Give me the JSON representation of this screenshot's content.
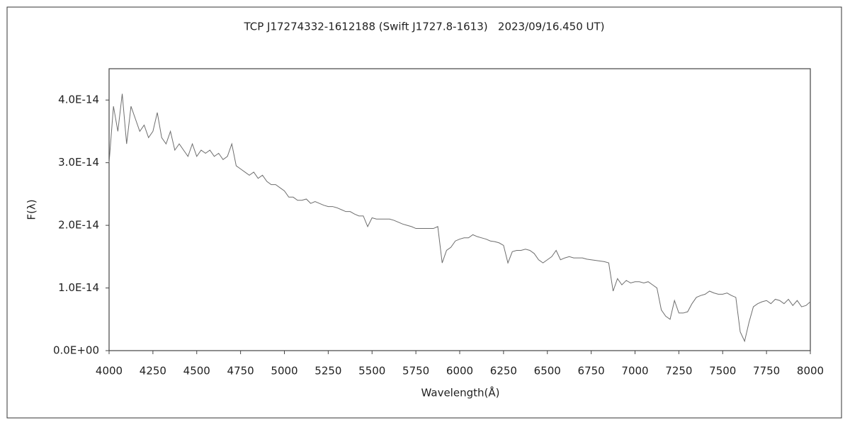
{
  "chart_data": {
    "type": "line",
    "title": "TCP J17274332-1612188 (Swift J1727.8-1613)   2023/09/16.450 UT)",
    "x_label": "Wavelength(Å)",
    "y_label": "F(λ)",
    "xlim": [
      4000,
      8000
    ],
    "xticks": [
      4000,
      4250,
      4500,
      4750,
      5000,
      5250,
      5500,
      5750,
      6000,
      6250,
      6500,
      6750,
      7000,
      7250,
      7500,
      7750,
      8000
    ],
    "ylim": [
      0,
      4.5e-14
    ],
    "yticks": [
      {
        "value": 0,
        "label": "0.0E+00"
      },
      {
        "value": 1e-14,
        "label": "1.0E-14"
      },
      {
        "value": 2e-14,
        "label": "2.0E-14"
      },
      {
        "value": 3e-14,
        "label": "3.0E-14"
      },
      {
        "value": 4e-14,
        "label": "4.0E-14"
      }
    ],
    "grid": false,
    "x": [
      4000,
      4025,
      4050,
      4075,
      4100,
      4125,
      4150,
      4175,
      4200,
      4225,
      4250,
      4275,
      4300,
      4325,
      4350,
      4375,
      4400,
      4425,
      4450,
      4475,
      4500,
      4525,
      4550,
      4575,
      4600,
      4625,
      4650,
      4675,
      4700,
      4725,
      4750,
      4775,
      4800,
      4825,
      4850,
      4875,
      4900,
      4925,
      4950,
      4975,
      5000,
      5025,
      5050,
      5075,
      5100,
      5125,
      5150,
      5175,
      5200,
      5225,
      5250,
      5275,
      5300,
      5325,
      5350,
      5375,
      5400,
      5425,
      5450,
      5475,
      5500,
      5525,
      5550,
      5575,
      5600,
      5625,
      5650,
      5675,
      5700,
      5725,
      5750,
      5775,
      5800,
      5825,
      5850,
      5875,
      5900,
      5925,
      5950,
      5975,
      6000,
      6025,
      6050,
      6075,
      6100,
      6125,
      6150,
      6175,
      6200,
      6225,
      6250,
      6275,
      6300,
      6325,
      6350,
      6375,
      6400,
      6425,
      6450,
      6475,
      6500,
      6525,
      6550,
      6575,
      6600,
      6625,
      6650,
      6675,
      6700,
      6725,
      6750,
      6775,
      6800,
      6825,
      6850,
      6875,
      6900,
      6925,
      6950,
      6975,
      7000,
      7025,
      7050,
      7075,
      7100,
      7125,
      7150,
      7175,
      7200,
      7225,
      7250,
      7275,
      7300,
      7325,
      7350,
      7375,
      7400,
      7425,
      7450,
      7475,
      7500,
      7525,
      7550,
      7575,
      7600,
      7625,
      7650,
      7675,
      7700,
      7725,
      7750,
      7775,
      7800,
      7825,
      7850,
      7875,
      7900,
      7925,
      7950,
      7975,
      8000
    ],
    "series": [
      {
        "color": "#6e6e6e",
        "values": [
          3e-14,
          3.9e-14,
          3.5e-14,
          4.1e-14,
          3.3e-14,
          3.9e-14,
          3.7e-14,
          3.5e-14,
          3.6e-14,
          3.4e-14,
          3.5e-14,
          3.8e-14,
          3.4e-14,
          3.3e-14,
          3.5e-14,
          3.2e-14,
          3.3e-14,
          3.2e-14,
          3.1e-14,
          3.3e-14,
          3.1e-14,
          3.2e-14,
          3.15e-14,
          3.2e-14,
          3.1e-14,
          3.15e-14,
          3.05e-14,
          3.1e-14,
          3.3e-14,
          2.95e-14,
          2.9e-14,
          2.85e-14,
          2.8e-14,
          2.85e-14,
          2.75e-14,
          2.8e-14,
          2.7e-14,
          2.65e-14,
          2.65e-14,
          2.6e-14,
          2.55e-14,
          2.45e-14,
          2.45e-14,
          2.4e-14,
          2.4e-14,
          2.42e-14,
          2.35e-14,
          2.38e-14,
          2.35e-14,
          2.32e-14,
          2.3e-14,
          2.3e-14,
          2.28e-14,
          2.25e-14,
          2.22e-14,
          2.22e-14,
          2.18e-14,
          2.15e-14,
          2.15e-14,
          1.98e-14,
          2.12e-14,
          2.1e-14,
          2.1e-14,
          2.1e-14,
          2.1e-14,
          2.08e-14,
          2.05e-14,
          2.02e-14,
          2e-14,
          1.98e-14,
          1.95e-14,
          1.95e-14,
          1.95e-14,
          1.95e-14,
          1.95e-14,
          1.98e-14,
          1.4e-14,
          1.6e-14,
          1.65e-14,
          1.75e-14,
          1.78e-14,
          1.8e-14,
          1.8e-14,
          1.85e-14,
          1.82e-14,
          1.8e-14,
          1.78e-14,
          1.75e-14,
          1.74e-14,
          1.72e-14,
          1.68e-14,
          1.4e-14,
          1.58e-14,
          1.6e-14,
          1.6e-14,
          1.62e-14,
          1.6e-14,
          1.55e-14,
          1.45e-14,
          1.4e-14,
          1.45e-14,
          1.5e-14,
          1.6e-14,
          1.45e-14,
          1.48e-14,
          1.5e-14,
          1.48e-14,
          1.48e-14,
          1.48e-14,
          1.46e-14,
          1.45e-14,
          1.44e-14,
          1.43e-14,
          1.42e-14,
          1.4e-14,
          9.5e-15,
          1.15e-14,
          1.05e-14,
          1.12e-14,
          1.08e-14,
          1.1e-14,
          1.1e-14,
          1.08e-14,
          1.1e-14,
          1.05e-14,
          1e-14,
          6.5e-15,
          5.5e-15,
          5e-15,
          8e-15,
          6e-15,
          6e-15,
          6.2e-15,
          7.5e-15,
          8.5e-15,
          8.8e-15,
          9e-15,
          9.5e-15,
          9.2e-15,
          9e-15,
          9e-15,
          9.2e-15,
          8.8e-15,
          8.5e-15,
          3e-15,
          1.5e-15,
          4.5e-15,
          7e-15,
          7.5e-15,
          7.8e-15,
          8e-15,
          7.5e-15,
          8.2e-15,
          8e-15,
          7.5e-15,
          8.2e-15,
          7.2e-15,
          8e-15,
          7e-15,
          7.2e-15,
          7.8e-15
        ]
      }
    ]
  }
}
